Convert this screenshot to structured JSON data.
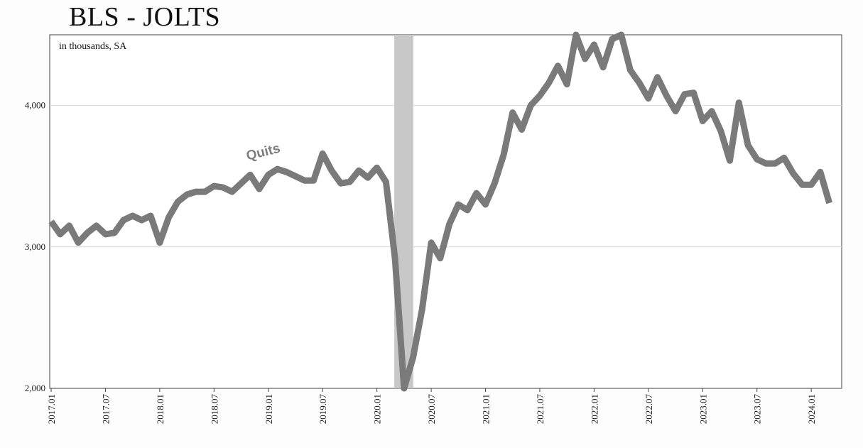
{
  "title": "BLS - JOLTS",
  "chart_data": {
    "type": "line",
    "title": "BLS - JOLTS",
    "note": "in thousands, SA",
    "xlabel": "",
    "ylabel": "",
    "ylim": [
      2000,
      4500
    ],
    "y_ticks": [
      2000,
      3000,
      4000
    ],
    "y_tick_labels": [
      "2,000",
      "3,000",
      "4,000"
    ],
    "x_tick_labels": [
      "2017.01",
      "2017.07",
      "2018.01",
      "2018.07",
      "2019.01",
      "2019.07",
      "2020.01",
      "2020.07",
      "2021.01",
      "2021.07",
      "2022.01",
      "2022.07",
      "2023.01",
      "2023.07",
      "2024.01"
    ],
    "grid": "horizontal",
    "recession_shading": [
      "2020.03",
      "2020.04"
    ],
    "series": [
      {
        "name": "Quits",
        "color": "#7a7a7a",
        "x_start": "2017.01",
        "frequency": "monthly",
        "values": [
          3180,
          3090,
          3150,
          3030,
          3100,
          3150,
          3090,
          3100,
          3190,
          3220,
          3190,
          3220,
          3030,
          3210,
          3320,
          3370,
          3390,
          3390,
          3430,
          3420,
          3390,
          3450,
          3510,
          3410,
          3510,
          3550,
          3530,
          3500,
          3470,
          3470,
          3660,
          3540,
          3450,
          3460,
          3540,
          3490,
          3560,
          3460,
          2920,
          1980,
          2220,
          2560,
          3030,
          2920,
          3160,
          3300,
          3260,
          3380,
          3300,
          3450,
          3650,
          3950,
          3830,
          4000,
          4070,
          4160,
          4280,
          4150,
          4500,
          4330,
          4430,
          4270,
          4470,
          4500,
          4250,
          4160,
          4050,
          4200,
          4070,
          3960,
          4080,
          4090,
          3890,
          3960,
          3820,
          3610,
          4020,
          3720,
          3620,
          3590,
          3590,
          3630,
          3520,
          3440,
          3440,
          3530,
          3310
        ]
      }
    ]
  }
}
